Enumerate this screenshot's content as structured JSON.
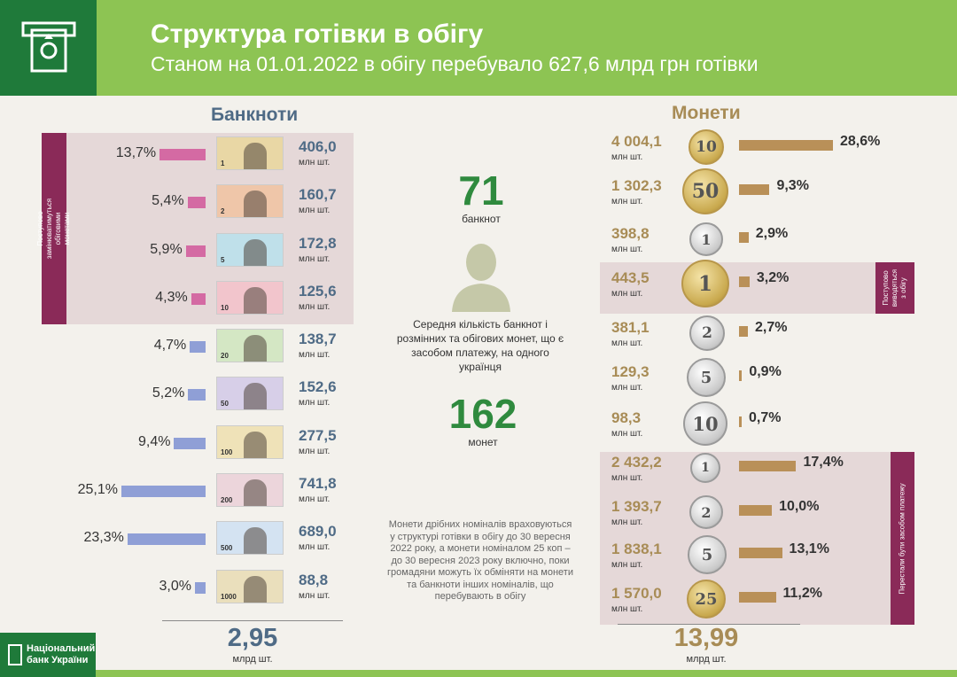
{
  "header": {
    "title": "Структура готівки в обігу",
    "subtitle": "Станом на 01.01.2022 в обігу перебувало 627,6 млрд грн готівки"
  },
  "banknotes": {
    "title": "Банкноти",
    "side_label": "Поступово замінюватимуться обіговими монетами",
    "unit": "млн шт.",
    "rows": [
      {
        "pct": "13,7%",
        "value": "406,0",
        "nominal": "1",
        "share": 13.7
      },
      {
        "pct": "5,4%",
        "value": "160,7",
        "nominal": "2",
        "share": 5.4
      },
      {
        "pct": "5,9%",
        "value": "172,8",
        "nominal": "5",
        "share": 5.9
      },
      {
        "pct": "4,3%",
        "value": "125,6",
        "nominal": "10",
        "share": 4.3
      },
      {
        "pct": "4,7%",
        "value": "138,7",
        "nominal": "20",
        "share": 4.7
      },
      {
        "pct": "5,2%",
        "value": "152,6",
        "nominal": "50",
        "share": 5.2
      },
      {
        "pct": "9,4%",
        "value": "277,5",
        "nominal": "100",
        "share": 9.4
      },
      {
        "pct": "25,1%",
        "value": "741,8",
        "nominal": "200",
        "share": 25.1
      },
      {
        "pct": "23,3%",
        "value": "689,0",
        "nominal": "500",
        "share": 23.3
      },
      {
        "pct": "3,0%",
        "value": "88,8",
        "nominal": "1000",
        "share": 3.0
      }
    ],
    "total": "2,95",
    "total_unit": "млрд шт."
  },
  "middle": {
    "banknotes_num": "71",
    "banknotes_label": "банкнот",
    "description": "Середня кількість банкнот і розмінних та обігових монет, що є засобом платежу, на одного українця",
    "coins_num": "162",
    "coins_label": "монет",
    "footnote": "Монети дрібних номіналів враховуються у структурі готівки в обігу до 30 вересня 2022 року, а монети номіналом 25 коп – до 30 вересня 2023 року включно, поки громадяни можуть їх обміняти на монети та банкноти інших номіналів, що перебувають в обігу"
  },
  "coins": {
    "title": "Монети",
    "side_label_1": "Поступово виводяться з обігу",
    "side_label_2": "Перестали бути засобом платежу",
    "unit": "млн шт.",
    "rows": [
      {
        "value": "4 004,1",
        "pct": "28,6%",
        "nominal": "10",
        "metal": "gold",
        "share": 28.6
      },
      {
        "value": "1 302,3",
        "pct": "9,3%",
        "nominal": "50",
        "metal": "gold",
        "share": 9.3
      },
      {
        "value": "398,8",
        "pct": "2,9%",
        "nominal": "1",
        "metal": "silver",
        "share": 2.9
      },
      {
        "value": "443,5",
        "pct": "3,2%",
        "nominal": "1",
        "metal": "gold",
        "share": 3.2
      },
      {
        "value": "381,1",
        "pct": "2,7%",
        "nominal": "2",
        "metal": "silver",
        "share": 2.7
      },
      {
        "value": "129,3",
        "pct": "0,9%",
        "nominal": "5",
        "metal": "silver",
        "share": 0.9
      },
      {
        "value": "98,3",
        "pct": "0,7%",
        "nominal": "10",
        "metal": "silver",
        "share": 0.7
      },
      {
        "value": "2 432,2",
        "pct": "17,4%",
        "nominal": "1",
        "metal": "silver",
        "share": 17.4
      },
      {
        "value": "1 393,7",
        "pct": "10,0%",
        "nominal": "2",
        "metal": "silver",
        "share": 10.0
      },
      {
        "value": "1 838,1",
        "pct": "13,1%",
        "nominal": "5",
        "metal": "silver",
        "share": 13.1
      },
      {
        "value": "1 570,0",
        "pct": "11,2%",
        "nominal": "25",
        "metal": "gold",
        "share": 11.2
      }
    ],
    "total": "13,99",
    "total_unit": "млрд шт."
  },
  "footer": {
    "bank_name_line1": "Національний",
    "bank_name_line2": "банк України"
  },
  "colors": {
    "green_header": "#8dc453",
    "dark_green": "#1f7a3a",
    "banknote_blue": "#4f6b86",
    "coin_gold": "#a88c56",
    "bar_pink": "#d46aa3",
    "bar_blue": "#8f9fd6",
    "bar_coin": "#b99058",
    "tab_purple": "#8a2a58"
  }
}
